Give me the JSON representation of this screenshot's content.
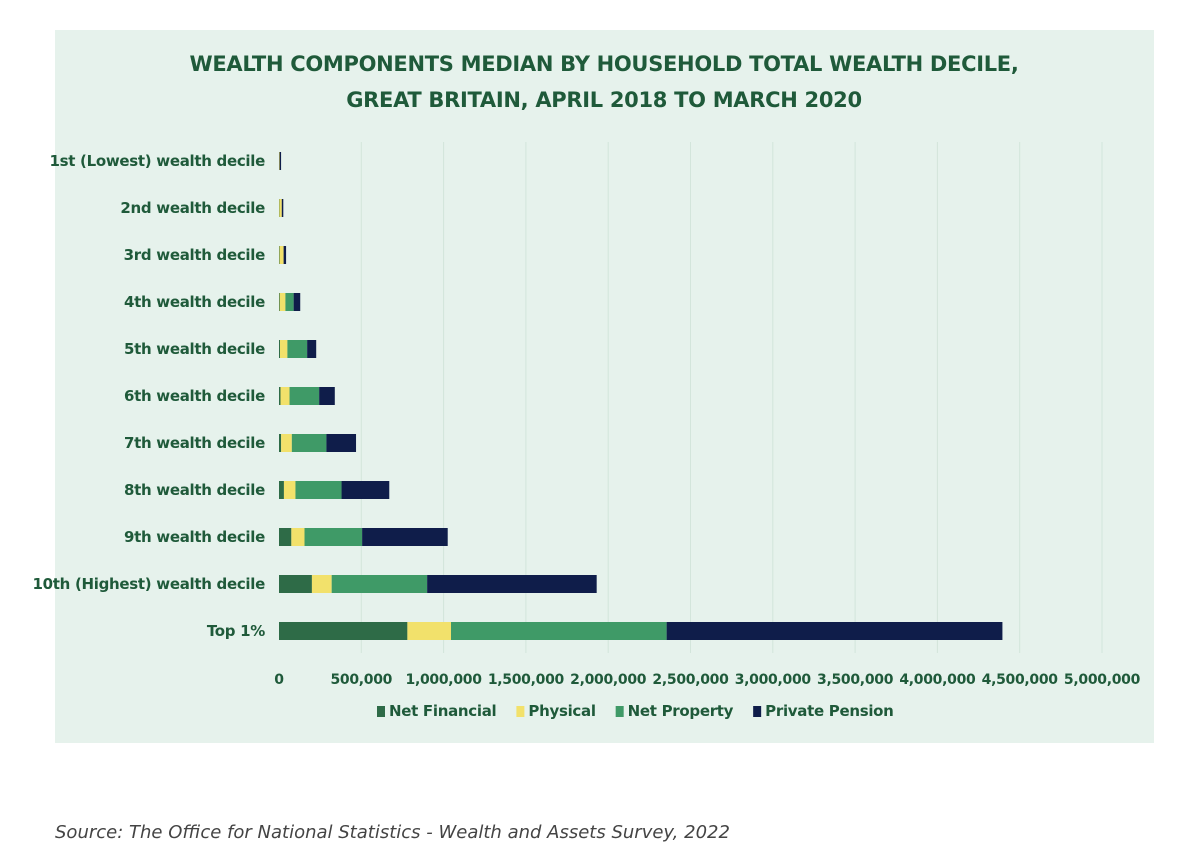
{
  "source": "Source: The Office for National Statistics - Wealth and Assets Survey, 2022",
  "chart_data": {
    "type": "bar",
    "orientation": "horizontal",
    "stacked": true,
    "title_lines": [
      "WEALTH COMPONENTS MEDIAN BY HOUSEHOLD TOTAL WEALTH DECILE,",
      "GREAT BRITAIN, APRIL 2018 TO MARCH 2020"
    ],
    "categories": [
      "1st (Lowest) wealth decile",
      "2nd wealth decile",
      "3rd wealth decile",
      "4th wealth decile",
      "5th wealth decile",
      "6th wealth decile",
      "7th wealth decile",
      "8th wealth decile",
      "9th wealth decile",
      "10th (Highest) wealth decile",
      "Top 1%"
    ],
    "series": [
      {
        "name": "Net Financial",
        "color": "#2e6b47",
        "values": [
          500,
          2000,
          3000,
          4000,
          6000,
          9000,
          13000,
          30000,
          75000,
          200000,
          780000
        ]
      },
      {
        "name": "Physical",
        "color": "#f2e16b",
        "values": [
          3000,
          15000,
          25000,
          35000,
          45000,
          55000,
          65000,
          70000,
          80000,
          120000,
          265000
        ]
      },
      {
        "name": "Net Property",
        "color": "#3f9a67",
        "values": [
          0,
          0,
          0,
          50000,
          120000,
          180000,
          210000,
          280000,
          350000,
          580000,
          1310000
        ]
      },
      {
        "name": "Private Pension",
        "color": "#0f1d4a",
        "values": [
          500,
          3000,
          15000,
          40000,
          55000,
          95000,
          180000,
          290000,
          520000,
          1030000,
          2040000
        ]
      }
    ],
    "xlim": [
      0,
      5000000
    ],
    "xticks": [
      "0",
      "500,000",
      "1,000,000",
      "1,500,000",
      "2,000,000",
      "2,500,000",
      "3,000,000",
      "3,500,000",
      "4,000,000",
      "4,500,000",
      "5,000,000"
    ],
    "grid": "vertical",
    "legend_position": "bottom"
  }
}
